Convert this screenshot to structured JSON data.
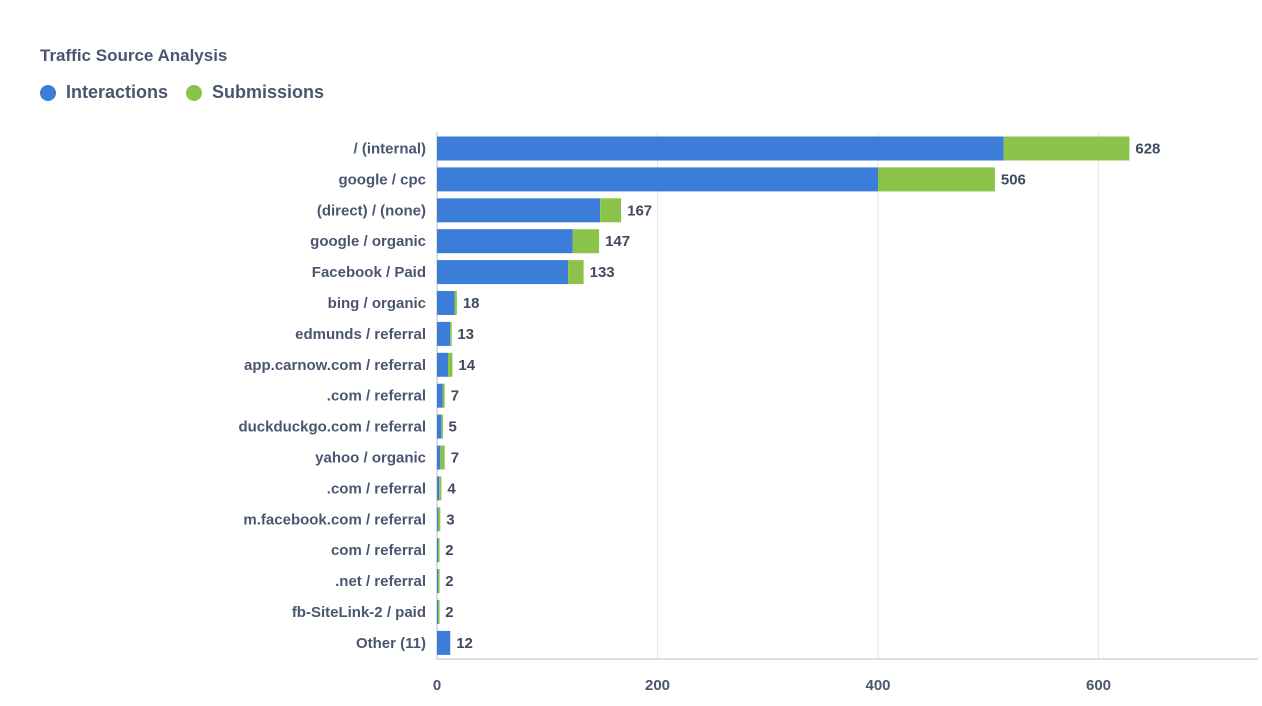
{
  "header": {
    "title": "Traffic Source Analysis"
  },
  "legend": {
    "items": [
      {
        "label": "Interactions",
        "color": "#3b7dd8"
      },
      {
        "label": "Submissions",
        "color": "#8bc34a"
      }
    ]
  },
  "chart_data": {
    "type": "bar",
    "orientation": "horizontal",
    "stacked": true,
    "title": "Traffic Source Analysis",
    "xlabel": "",
    "ylabel": "",
    "xlim": [
      0,
      750
    ],
    "x_ticks": [
      0,
      200,
      400,
      600
    ],
    "grid": true,
    "legend_position": "top-left",
    "categories": [
      "/ (internal)",
      "google / cpc",
      "(direct) / (none)",
      "google / organic",
      "Facebook / Paid",
      "bing / organic",
      "edmunds / referral",
      "app.carnow.com / referral",
      ".com / referral",
      "duckduckgo.com / referral",
      "yahoo / organic",
      ".com / referral",
      "m.facebook.com / referral",
      "com / referral",
      ".net / referral",
      "fb-SiteLink-2 / paid",
      "Other (11)"
    ],
    "series": [
      {
        "name": "Interactions",
        "color": "#3b7dd8",
        "values": [
          514,
          400,
          148,
          123,
          119,
          16,
          12,
          10,
          5,
          4,
          3,
          2,
          1,
          1,
          1,
          1,
          12
        ]
      },
      {
        "name": "Submissions",
        "color": "#8bc34a",
        "values": [
          114,
          106,
          19,
          24,
          14,
          2,
          1,
          4,
          2,
          1,
          4,
          2,
          2,
          1,
          1,
          1,
          0
        ]
      }
    ],
    "totals": [
      628,
      506,
      167,
      147,
      133,
      18,
      13,
      14,
      7,
      5,
      7,
      4,
      3,
      2,
      2,
      2,
      12
    ]
  }
}
